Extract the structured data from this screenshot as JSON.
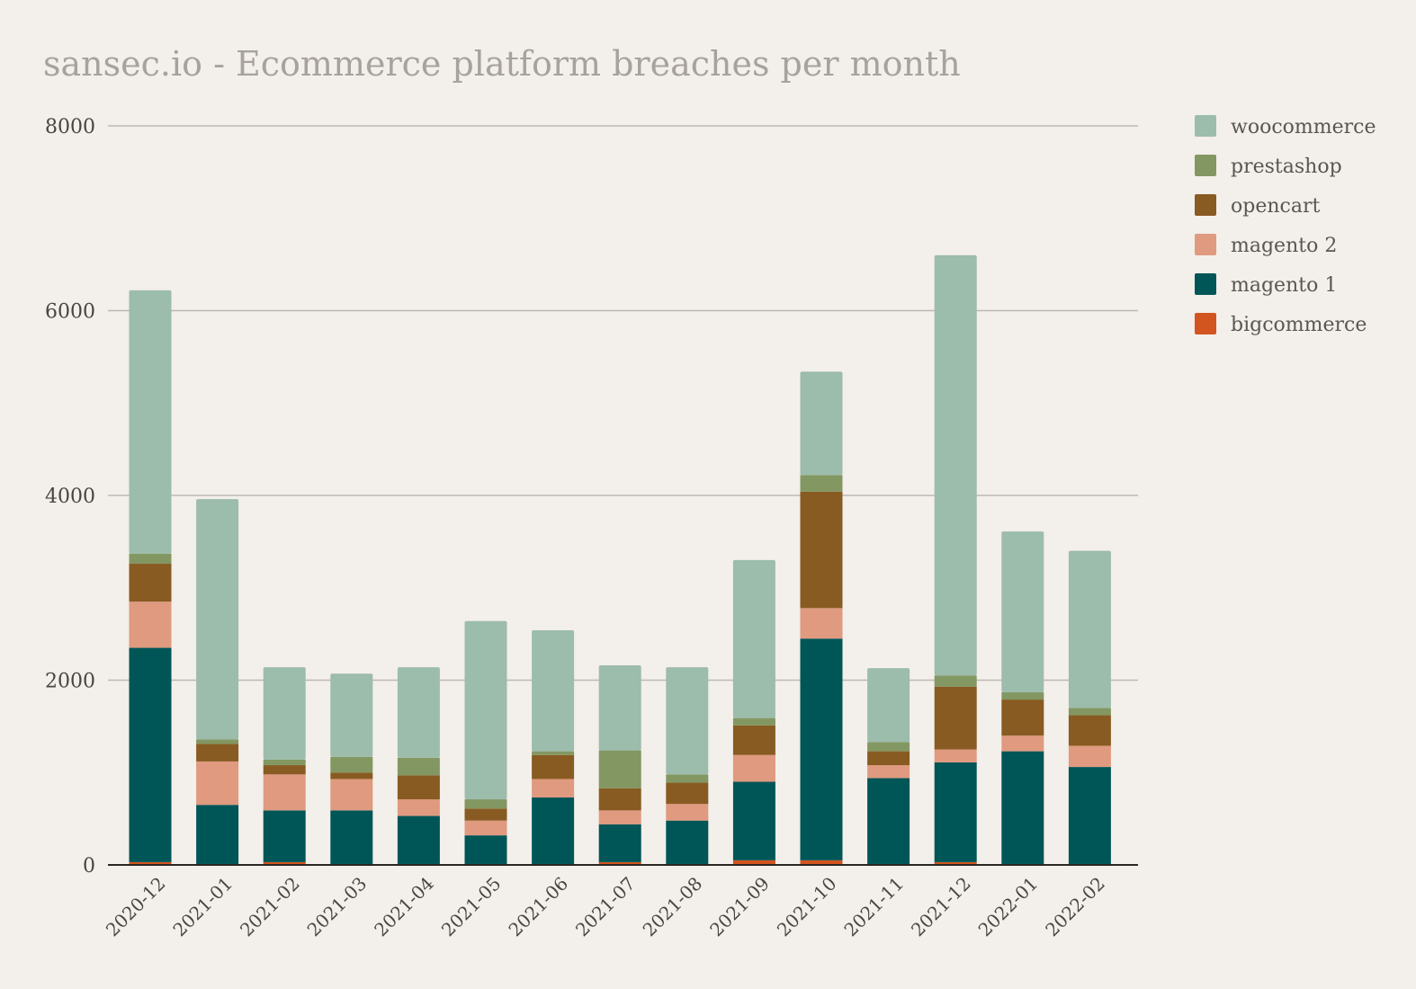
{
  "chart_data": {
    "type": "bar",
    "stacked": true,
    "title": "sansec.io - Ecommerce platform breaches per month",
    "xlabel": "",
    "ylabel": "",
    "ylim": [
      0,
      8000
    ],
    "yticks": [
      0,
      2000,
      4000,
      6000,
      8000
    ],
    "grid": true,
    "legend_position": "right",
    "categories": [
      "2020-12",
      "2021-01",
      "2021-02",
      "2021-03",
      "2021-04",
      "2021-05",
      "2021-06",
      "2021-07",
      "2021-08",
      "2021-09",
      "2021-10",
      "2021-11",
      "2021-12",
      "2022-01",
      "2022-02"
    ],
    "series": [
      {
        "name": "bigcommerce",
        "color": "#d2541e",
        "values": [
          30,
          10,
          30,
          10,
          10,
          10,
          10,
          30,
          10,
          50,
          50,
          10,
          30,
          10,
          10
        ]
      },
      {
        "name": "magento 1",
        "color": "#005557",
        "values": [
          2320,
          640,
          560,
          580,
          520,
          310,
          720,
          410,
          470,
          850,
          2400,
          930,
          1080,
          1220,
          1050
        ]
      },
      {
        "name": "magento 2",
        "color": "#df9a7f",
        "values": [
          500,
          470,
          390,
          340,
          180,
          160,
          200,
          150,
          180,
          290,
          330,
          140,
          140,
          170,
          230
        ]
      },
      {
        "name": "opencart",
        "color": "#885b22",
        "values": [
          410,
          190,
          100,
          70,
          260,
          130,
          260,
          240,
          230,
          320,
          1260,
          150,
          680,
          390,
          330
        ]
      },
      {
        "name": "prestashop",
        "color": "#839762",
        "values": [
          110,
          50,
          60,
          170,
          190,
          100,
          40,
          410,
          90,
          80,
          180,
          100,
          120,
          80,
          80
        ]
      },
      {
        "name": "woocommerce",
        "color": "#9cbcac",
        "values": [
          2850,
          2600,
          1000,
          900,
          980,
          1930,
          1310,
          920,
          1160,
          1710,
          1120,
          800,
          4550,
          1740,
          1700
        ]
      }
    ],
    "legend_order": [
      "woocommerce",
      "prestashop",
      "opencart",
      "magento 2",
      "magento 1",
      "bigcommerce"
    ]
  }
}
